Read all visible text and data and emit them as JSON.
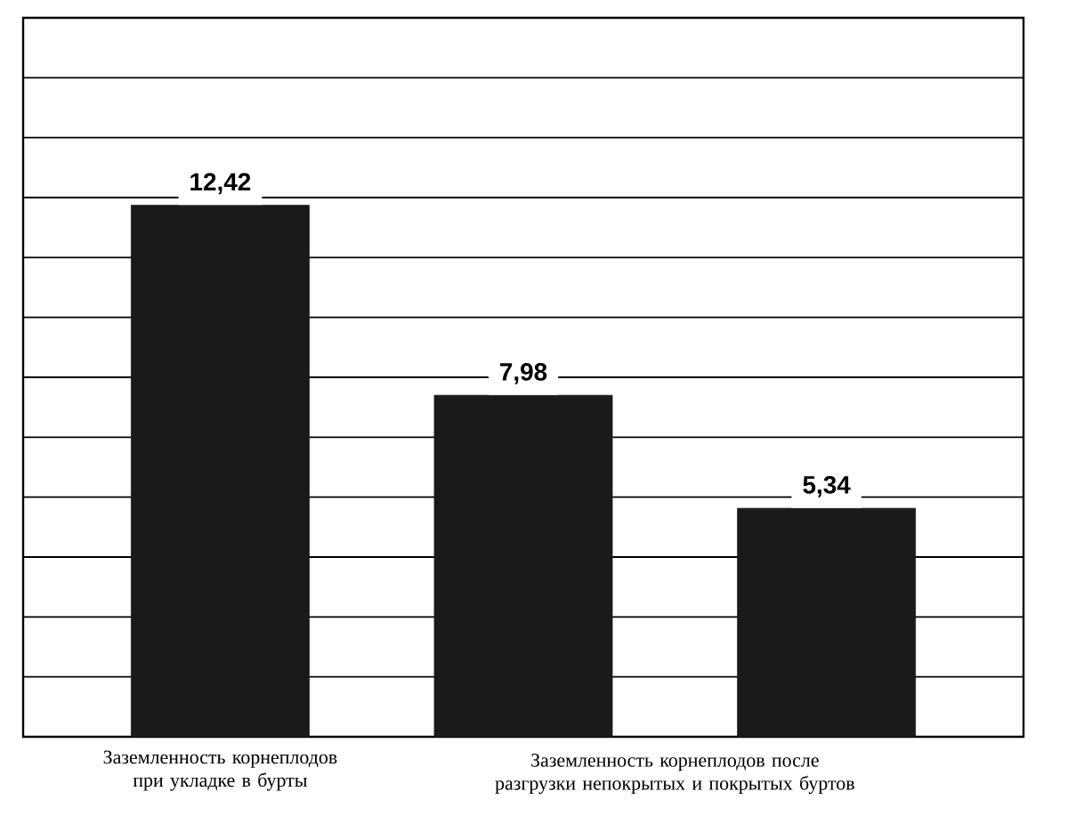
{
  "chart_data": {
    "type": "bar",
    "categories": [
      "Заземленность корнеплодов при укладке в бурты",
      null,
      null
    ],
    "values": [
      12.42,
      7.98,
      5.34
    ],
    "value_labels": [
      "12,42",
      "7,98",
      "5,34"
    ],
    "color": "#1a1a1a",
    "ylim": [
      0,
      16.8
    ],
    "yticks": [
      {
        "value": 0,
        "label": null
      },
      {
        "value": 1.4,
        "label": null
      },
      {
        "value": 2.8,
        "label": null
      },
      {
        "value": 4.2,
        "label": null
      },
      {
        "value": 5.6,
        "label": null
      },
      {
        "value": 7,
        "label": null
      },
      {
        "value": 8.4,
        "label": null
      },
      {
        "value": 9.8,
        "label": null
      },
      {
        "value": 11.2,
        "label": null
      },
      {
        "value": 12.6,
        "label": null
      },
      {
        "value": 14,
        "label": null
      },
      {
        "value": 15.4,
        "label": null
      },
      {
        "value": 16.8,
        "label": null
      }
    ],
    "grid": "y",
    "tick_labels": "x",
    "annotations": [
      "Заземленность корнеплодов после разгрузки непокрытых и покрытых буртов"
    ]
  }
}
